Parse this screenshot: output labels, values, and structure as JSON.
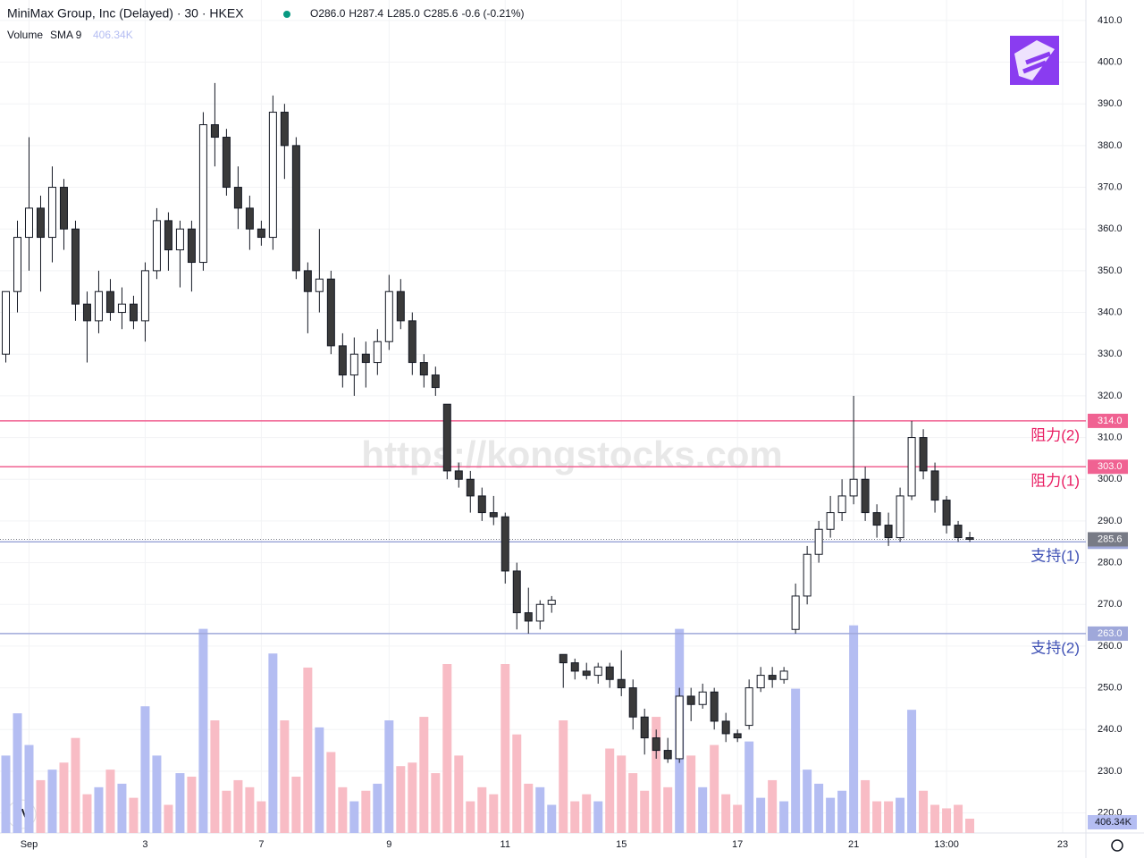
{
  "chart_data": {
    "type": "candlestick",
    "title": "MiniMax Group, Inc (Delayed) · 30 · HKEX",
    "header_ohlc": [
      "O286.0",
      "H287.4",
      "L285.0",
      "C285.6",
      "-0.6 (-0.21%)"
    ],
    "volume_title": "Volume",
    "volume_indicator": "SMA 9",
    "watermark": "https://kongstocks.com",
    "up_color": "#ffffff",
    "down_color": "#3a3a3a",
    "volume_up_color": "#b4bdf2",
    "volume_down_color": "#f8bcc5",
    "ylim": [
      215.2,
      414.9
    ],
    "yticks": [
      {
        "value": 220,
        "label": "220.0"
      },
      {
        "value": 230,
        "label": "230.0"
      },
      {
        "value": 240,
        "label": "240.0"
      },
      {
        "value": 250,
        "label": "250.0"
      },
      {
        "value": 260,
        "label": "260.0"
      },
      {
        "value": 270,
        "label": "270.0"
      },
      {
        "value": 280,
        "label": "280.0"
      },
      {
        "value": 290,
        "label": "290.0"
      },
      {
        "value": 300,
        "label": "300.0"
      },
      {
        "value": 310,
        "label": "310.0"
      },
      {
        "value": 320,
        "label": "320.0"
      },
      {
        "value": 330,
        "label": "330.0"
      },
      {
        "value": 340,
        "label": "340.0"
      },
      {
        "value": 350,
        "label": "350.0"
      },
      {
        "value": 360,
        "label": "360.0"
      },
      {
        "value": 370,
        "label": "370.0"
      },
      {
        "value": 380,
        "label": "380.0"
      },
      {
        "value": 390,
        "label": "390.0"
      },
      {
        "value": 400,
        "label": "400.0"
      },
      {
        "value": 410,
        "label": "410.0"
      }
    ],
    "xlim": [
      -0.5,
      93
    ],
    "xticks": [
      {
        "value": 2,
        "label": "Sep"
      },
      {
        "value": 12,
        "label": "3"
      },
      {
        "value": 22,
        "label": "7"
      },
      {
        "value": 33,
        "label": "9"
      },
      {
        "value": 43,
        "label": "11"
      },
      {
        "value": 53,
        "label": "15"
      },
      {
        "value": 63,
        "label": "17"
      },
      {
        "value": 73,
        "label": "21"
      },
      {
        "value": 81,
        "label": "13:00"
      },
      {
        "value": 91,
        "label": "23"
      }
    ],
    "candles": [
      [
        330,
        345,
        328,
        345
      ],
      [
        345,
        362,
        340,
        358
      ],
      [
        358,
        382,
        350,
        365
      ],
      [
        365,
        368,
        345,
        358
      ],
      [
        358,
        375,
        352,
        370
      ],
      [
        370,
        372,
        355,
        360
      ],
      [
        360,
        362,
        338,
        342
      ],
      [
        342,
        345,
        328,
        338
      ],
      [
        338,
        350,
        335,
        345
      ],
      [
        345,
        348,
        338,
        340
      ],
      [
        340,
        346,
        336,
        342
      ],
      [
        342,
        344,
        336,
        338
      ],
      [
        338,
        352,
        333,
        350
      ],
      [
        350,
        365,
        348,
        362
      ],
      [
        362,
        364,
        350,
        355
      ],
      [
        355,
        362,
        346,
        360
      ],
      [
        360,
        362,
        345,
        352
      ],
      [
        352,
        388,
        350,
        385
      ],
      [
        385,
        395,
        375,
        382
      ],
      [
        382,
        384,
        368,
        370
      ],
      [
        370,
        375,
        360,
        365
      ],
      [
        365,
        368,
        355,
        360
      ],
      [
        360,
        362,
        356,
        358
      ],
      [
        358,
        392,
        355,
        388
      ],
      [
        388,
        390,
        372,
        380
      ],
      [
        380,
        382,
        348,
        350
      ],
      [
        350,
        352,
        335,
        345
      ],
      [
        345,
        360,
        340,
        348
      ],
      [
        348,
        350,
        330,
        332
      ],
      [
        332,
        335,
        322,
        325
      ],
      [
        325,
        334,
        320,
        330
      ],
      [
        330,
        333,
        322,
        328
      ],
      [
        328,
        336,
        325,
        333
      ],
      [
        333,
        349,
        331,
        345
      ],
      [
        345,
        348,
        336,
        338
      ],
      [
        338,
        340,
        325,
        328
      ],
      [
        328,
        330,
        322,
        325
      ],
      [
        325,
        327,
        320,
        322
      ],
      [
        318,
        318,
        300,
        302
      ],
      [
        302,
        304,
        298,
        300
      ],
      [
        300,
        302,
        292,
        296
      ],
      [
        296,
        298,
        290,
        292
      ],
      [
        292,
        296,
        289,
        291
      ],
      [
        291,
        292,
        275,
        278
      ],
      [
        278,
        280,
        264,
        268
      ],
      [
        268,
        274,
        263,
        266
      ],
      [
        266,
        271,
        264,
        270
      ],
      [
        270,
        272,
        268,
        271
      ],
      [
        258,
        258,
        250,
        256
      ],
      [
        256,
        257,
        252,
        254
      ],
      [
        254,
        256,
        252,
        253
      ],
      [
        253,
        256,
        251,
        255
      ],
      [
        255,
        256,
        250,
        252
      ],
      [
        252,
        259,
        248,
        250
      ],
      [
        250,
        252,
        240,
        243
      ],
      [
        243,
        245,
        234,
        238
      ],
      [
        238,
        240,
        233,
        235
      ],
      [
        235,
        238,
        232,
        233
      ],
      [
        233,
        250,
        232,
        248
      ],
      [
        248,
        250,
        242,
        246
      ],
      [
        246,
        251,
        245,
        249
      ],
      [
        249,
        250,
        240,
        242
      ],
      [
        242,
        244,
        237,
        239
      ],
      [
        239,
        240,
        237,
        238
      ],
      [
        241,
        252,
        240,
        250
      ],
      [
        250,
        255,
        249,
        253
      ],
      [
        253,
        255,
        250,
        252
      ],
      [
        252,
        255,
        251,
        254
      ],
      [
        264,
        275,
        263,
        272
      ],
      [
        272,
        284,
        270,
        282
      ],
      [
        282,
        290,
        280,
        288
      ],
      [
        288,
        296,
        286,
        292
      ],
      [
        292,
        300,
        290,
        296
      ],
      [
        296,
        320,
        294,
        300
      ],
      [
        300,
        303,
        290,
        292
      ],
      [
        292,
        294,
        286,
        289
      ],
      [
        289,
        292,
        284,
        286
      ],
      [
        286,
        298,
        285,
        296
      ],
      [
        296,
        314,
        295,
        310
      ],
      [
        310,
        312,
        300,
        302
      ],
      [
        302,
        304,
        292,
        295
      ],
      [
        295,
        296,
        287,
        289
      ],
      [
        289,
        290,
        285,
        286
      ],
      [
        286,
        287.4,
        285,
        285.6
      ]
    ],
    "volumes": [
      2200,
      3400,
      2500,
      1500,
      1800,
      2000,
      2700,
      1100,
      1300,
      1800,
      1400,
      1000,
      3600,
      2200,
      800,
      1700,
      1600,
      5800,
      3200,
      1200,
      1500,
      1300,
      900,
      5100,
      3200,
      1600,
      4700,
      3000,
      2300,
      1300,
      900,
      1200,
      1400,
      3200,
      1900,
      2000,
      3300,
      1700,
      4800,
      2200,
      900,
      1300,
      1100,
      4800,
      2800,
      1400,
      1300,
      800,
      3200,
      900,
      1100,
      900,
      2400,
      2200,
      1700,
      1200,
      3300,
      1300,
      5800,
      2200,
      1300,
      2500,
      1100,
      800,
      2600,
      1000,
      1500,
      900,
      4100,
      1800,
      1400,
      1000,
      1200,
      5900,
      1500,
      900,
      900,
      1000,
      3500,
      1200,
      800,
      700,
      800,
      406.34
    ],
    "volume_last": {
      "value": 406.34,
      "label": "406.34K"
    },
    "last_price": {
      "value": 285.6,
      "label": "285.6"
    },
    "levels": [
      {
        "name": "阻力(2)",
        "value": 314,
        "label": "314.0",
        "color": "#f06292",
        "text_color": "#e91e63"
      },
      {
        "name": "阻力(1)",
        "value": 303,
        "label": "303.0",
        "color": "#f06292",
        "text_color": "#e91e63"
      },
      {
        "name": "支持(1)",
        "value": 285,
        "label": "285.0",
        "color": "#9fa8da",
        "text_color": "#3f51b5"
      },
      {
        "name": "支持(2)",
        "value": 263,
        "label": "263.0",
        "color": "#9fa8da",
        "text_color": "#3f51b5"
      }
    ]
  }
}
